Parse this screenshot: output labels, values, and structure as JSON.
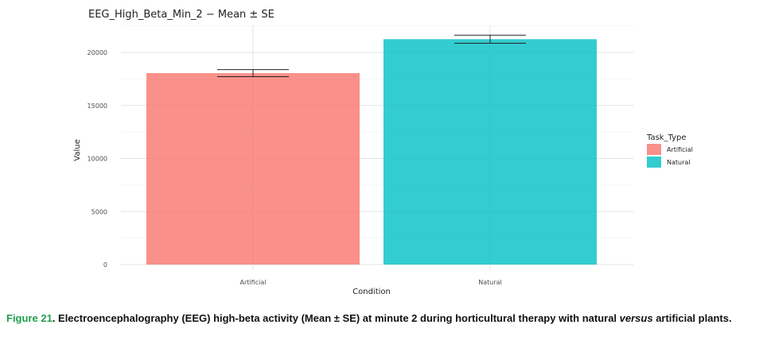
{
  "chart_data": {
    "type": "bar",
    "title": "EEG_High_Beta_Min_2 − Mean ± SE",
    "xlabel": "Condition",
    "ylabel": "Value",
    "categories": [
      "Artificial",
      "Natural"
    ],
    "values": [
      18050,
      21250
    ],
    "se": [
      330,
      380
    ],
    "colors": [
      "#f8766d",
      "#00bfc4"
    ],
    "bar_opacity": 0.8,
    "ylim": [
      0,
      22500
    ],
    "yticks": [
      0,
      5000,
      10000,
      15000,
      20000
    ],
    "ytick_labels": [
      "0",
      "5000",
      "10000",
      "15000",
      "20000"
    ],
    "grid": true,
    "legend": {
      "title": "Task_Type",
      "entries": [
        "Artificial",
        "Natural"
      ],
      "placement": "right"
    }
  },
  "caption": {
    "figure_label": "Figure 21",
    "text_before_italic": ". Electroencephalography (EEG) high-beta activity (Mean ± SE) at minute 2 during horticultural therapy with natural ",
    "italic": "versus",
    "text_after_italic": " artificial plants."
  }
}
